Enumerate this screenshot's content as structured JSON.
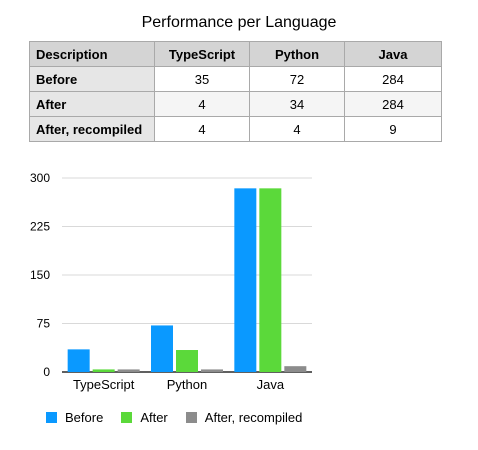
{
  "table": {
    "title": "Performance per Language",
    "headers": [
      "Description",
      "TypeScript",
      "Python",
      "Java"
    ],
    "rows": [
      {
        "label": "Before",
        "values": [
          "35",
          "72",
          "284"
        ]
      },
      {
        "label": "After",
        "values": [
          "4",
          "34",
          "284"
        ]
      },
      {
        "label": "After, recompiled",
        "values": [
          "4",
          "4",
          "9"
        ]
      }
    ]
  },
  "chart_data": {
    "type": "bar",
    "categories": [
      "TypeScript",
      "Python",
      "Java"
    ],
    "series": [
      {
        "name": "Before",
        "values": [
          35,
          72,
          284
        ],
        "color": "#0a99ff"
      },
      {
        "name": "After",
        "values": [
          4,
          34,
          284
        ],
        "color": "#5bd93a"
      },
      {
        "name": "After, recompiled",
        "values": [
          4,
          4,
          9
        ],
        "color": "#8c8c8c"
      }
    ],
    "yticks": [
      "0",
      "75",
      "150",
      "225",
      "300"
    ],
    "ylim": [
      0,
      300
    ],
    "grid": true,
    "legend_position": "bottom"
  }
}
